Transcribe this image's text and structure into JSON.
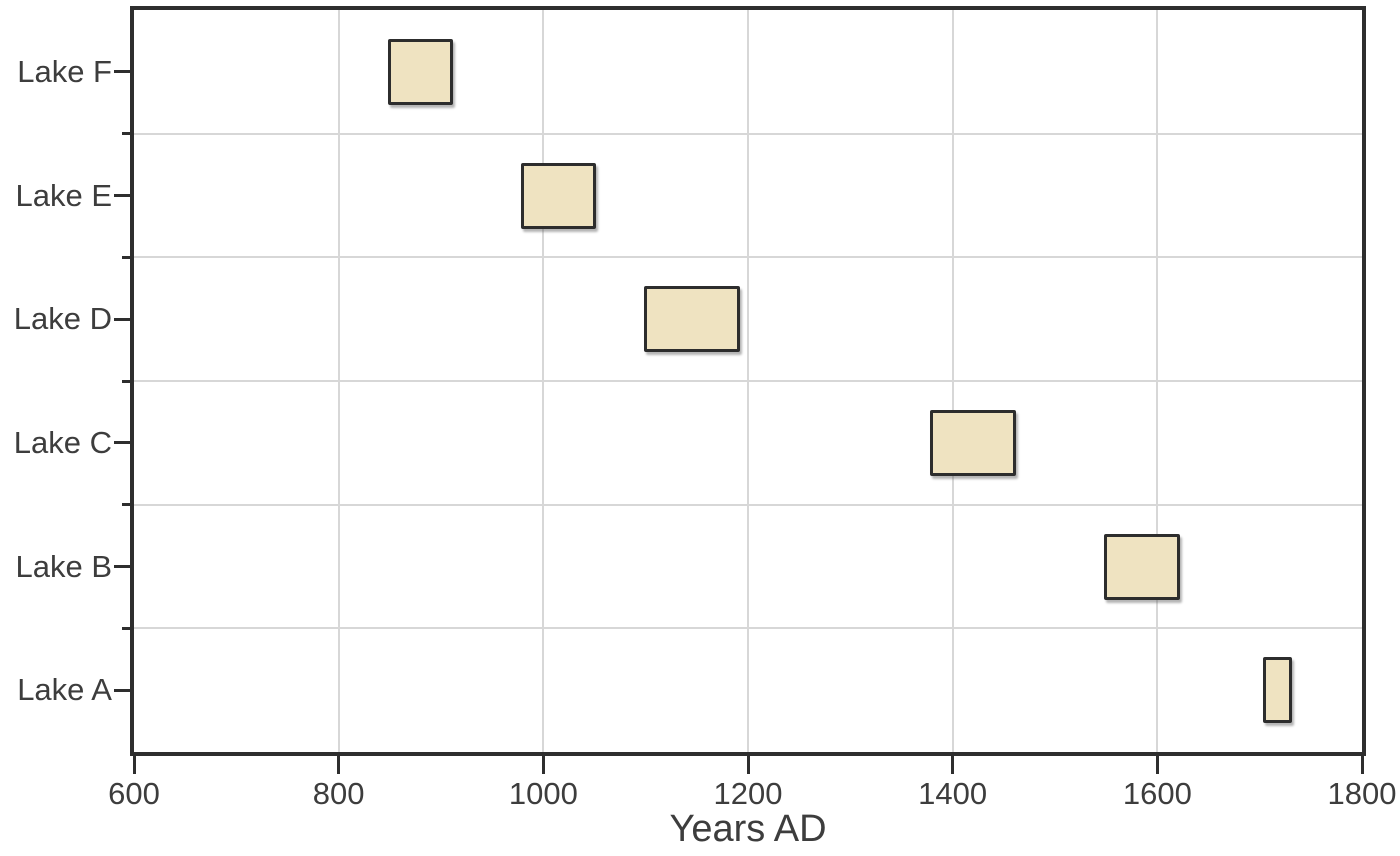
{
  "chart_data": {
    "type": "bar",
    "subtype": "horizontal-time-range-boxes",
    "title": "",
    "xlabel": "Years AD",
    "ylabel": "",
    "xlim": [
      600,
      1800
    ],
    "xticks": [
      600,
      800,
      1000,
      1200,
      1400,
      1600,
      1800
    ],
    "grid": true,
    "legend": null,
    "categories": [
      "Lake F",
      "Lake E",
      "Lake D",
      "Lake C",
      "Lake B",
      "Lake A"
    ],
    "ranges": [
      {
        "category": "Lake F",
        "start_year": 850,
        "end_year": 910
      },
      {
        "category": "Lake E",
        "start_year": 980,
        "end_year": 1050
      },
      {
        "category": "Lake D",
        "start_year": 1100,
        "end_year": 1190
      },
      {
        "category": "Lake C",
        "start_year": 1380,
        "end_year": 1460
      },
      {
        "category": "Lake B",
        "start_year": 1550,
        "end_year": 1620
      },
      {
        "category": "Lake A",
        "start_year": 1705,
        "end_year": 1730
      }
    ],
    "colors": {
      "box_fill": "#efe3c1",
      "box_border": "#2d2d2d",
      "grid": "#d7d7d7",
      "axis_frame": "#2e2e2e",
      "text": "#3d3d3d"
    }
  }
}
